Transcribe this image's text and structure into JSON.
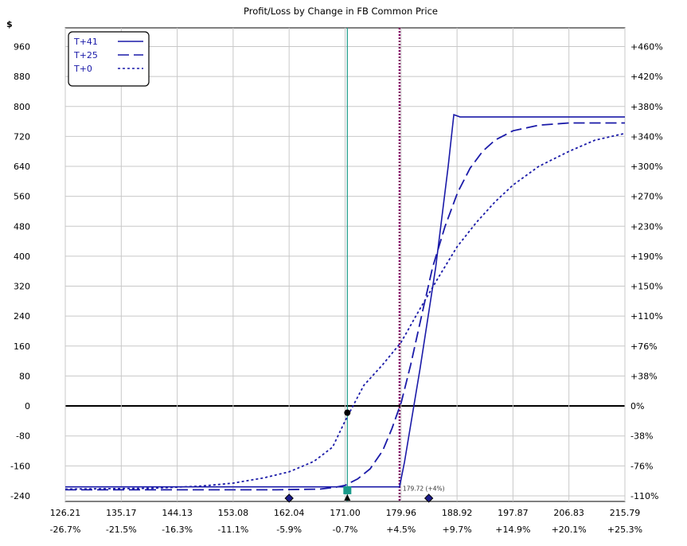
{
  "chart_data": {
    "type": "line",
    "title": "Profit/Loss by Change in FB Common Price",
    "ylabel": "$",
    "x_ticks": [
      126.21,
      135.17,
      144.13,
      153.08,
      162.04,
      171.0,
      179.96,
      188.92,
      197.87,
      206.83,
      215.79
    ],
    "x_tick_labels": [
      "126.21",
      "135.17",
      "144.13",
      "153.08",
      "162.04",
      "171.00",
      "179.96",
      "188.92",
      "197.87",
      "206.83",
      "215.79"
    ],
    "x_pct_labels": [
      "-26.7%",
      "-21.5%",
      "-16.3%",
      "-11.1%",
      "-5.9%",
      "-0.7%",
      "+4.5%",
      "+9.7%",
      "+14.9%",
      "+20.1%",
      "+25.3%"
    ],
    "xlim": [
      126.21,
      215.79
    ],
    "ylim": [
      -255,
      1010
    ],
    "y_ticks": [
      -240,
      -160,
      -80,
      0,
      80,
      160,
      240,
      320,
      400,
      480,
      560,
      640,
      720,
      800,
      880,
      960
    ],
    "y_tick_labels": [
      "-240",
      "-160",
      "-80",
      "0",
      "80",
      "160",
      "240",
      "320",
      "400",
      "480",
      "560",
      "640",
      "720",
      "800",
      "880",
      "960"
    ],
    "y2_ticks": [
      {
        "value": -240,
        "label": "-110%"
      },
      {
        "value": -160,
        "label": "-76%"
      },
      {
        "value": -80,
        "label": "-38%"
      },
      {
        "value": 0,
        "label": "0%"
      },
      {
        "value": 80,
        "label": "+38%"
      },
      {
        "value": 160,
        "label": "+76%"
      },
      {
        "value": 240,
        "label": "+110%"
      },
      {
        "value": 320,
        "label": "+150%"
      },
      {
        "value": 400,
        "label": "+190%"
      },
      {
        "value": 480,
        "label": "+230%"
      },
      {
        "value": 560,
        "label": "+270%"
      },
      {
        "value": 640,
        "label": "+300%"
      },
      {
        "value": 720,
        "label": "+340%"
      },
      {
        "value": 800,
        "label": "+380%"
      },
      {
        "value": 880,
        "label": "+420%"
      },
      {
        "value": 960,
        "label": "+460%"
      }
    ],
    "grid": true,
    "legend_position": "top-left",
    "series": [
      {
        "name": "T+41",
        "style": "solid",
        "color": "#1a1aa8",
        "x": [
          126.21,
          179.72,
          180.5,
          183.0,
          185.5,
          187.5,
          188.4,
          189.4,
          215.79
        ],
        "y": [
          -216,
          -216,
          -150,
          100,
          370,
          640,
          778,
          772,
          772
        ]
      },
      {
        "name": "T+25",
        "style": "dashed",
        "color": "#1a1aa8",
        "x": [
          126.21,
          160.0,
          167.0,
          169.5,
          171.0,
          173.0,
          175.0,
          177.0,
          178.5,
          180.0,
          181.5,
          183.5,
          185.0,
          187.0,
          189.0,
          191.0,
          193.0,
          195.0,
          197.87,
          202.0,
          206.83,
          215.79
        ],
        "y": [
          -224,
          -224,
          -222,
          -217,
          -212,
          -195,
          -168,
          -120,
          -60,
          10,
          110,
          260,
          370,
          480,
          570,
          635,
          680,
          710,
          735,
          750,
          756,
          756
        ]
      },
      {
        "name": "T+0",
        "style": "dotted",
        "color": "#1a1aa8",
        "x": [
          126.21,
          140.0,
          148.0,
          153.08,
          158.0,
          162.04,
          166.0,
          169.0,
          171.0,
          174.0,
          177.0,
          179.96,
          183.0,
          186.0,
          188.92,
          192.0,
          195.0,
          197.87,
          202.0,
          206.83,
          211.0,
          215.79
        ],
        "y": [
          -222,
          -220,
          -214,
          -206,
          -192,
          -176,
          -148,
          -110,
          -40,
          55,
          110,
          170,
          260,
          345,
          425,
          490,
          545,
          590,
          640,
          680,
          710,
          728
        ]
      }
    ],
    "vertical_lines": [
      {
        "x": 171.36,
        "color": "#1a9a8a",
        "style": "solid"
      },
      {
        "x": 179.72,
        "color": "#800060",
        "style": "dotted"
      }
    ],
    "markers": [
      {
        "type": "circle",
        "x": 171.36,
        "y": -18
      },
      {
        "type": "diamond",
        "x": 162.04,
        "y": -240
      },
      {
        "type": "diamond",
        "x": 184.4,
        "y": -240
      },
      {
        "type": "square",
        "x": 171.36,
        "y": -240
      },
      {
        "type": "triangle",
        "x": 171.36,
        "y": -240
      }
    ],
    "annotation": {
      "text": "179.72 (+4%)",
      "x": 179.72,
      "y": -216
    }
  }
}
